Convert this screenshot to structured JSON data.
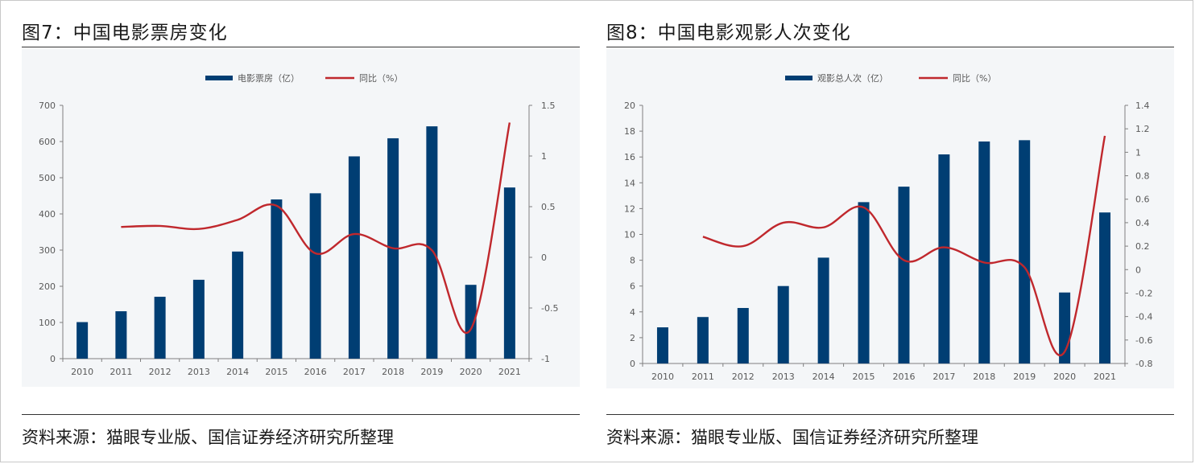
{
  "colors": {
    "bar": "#003e73",
    "line": "#c0282d",
    "axis": "#7f7f7f",
    "text": "#595959"
  },
  "panels": [
    {
      "title": "图7：中国电影票房变化",
      "source": "资料来源：猫眼专业版、国信证券经济研究所整理",
      "chart_data": {
        "type": "bar",
        "categories": [
          "2010",
          "2011",
          "2012",
          "2013",
          "2014",
          "2015",
          "2016",
          "2017",
          "2018",
          "2019",
          "2020",
          "2021"
        ],
        "series": [
          {
            "name": "电影票房（亿）",
            "type": "bar",
            "axis": "left",
            "values": [
              101,
              131,
              171,
              218,
              296,
              440,
              457,
              559,
              609,
              642,
              204,
              473
            ]
          },
          {
            "name": "同比（%）",
            "type": "line",
            "axis": "right",
            "values": [
              null,
              0.3,
              0.31,
              0.28,
              0.37,
              0.51,
              0.04,
              0.23,
              0.09,
              0.07,
              -0.71,
              1.33
            ]
          }
        ],
        "left_axis": {
          "min": 0,
          "max": 700,
          "ticks": [
            0,
            100,
            200,
            300,
            400,
            500,
            600,
            700
          ],
          "tick_labels": [
            "0",
            "100",
            "200",
            "300",
            "400",
            "500",
            "600",
            "700"
          ]
        },
        "right_axis": {
          "min": -1,
          "max": 1.5,
          "ticks": [
            -1,
            -0.5,
            0,
            0.5,
            1,
            1.5
          ],
          "tick_labels": [
            "-1",
            "-0.5",
            "0",
            "0.5",
            "1",
            "1.5"
          ]
        },
        "legend": "top-center",
        "grid": false
      }
    },
    {
      "title": "图8：中国电影观影人次变化",
      "source": "资料来源：猫眼专业版、国信证券经济研究所整理",
      "chart_data": {
        "type": "bar",
        "categories": [
          "2010",
          "2011",
          "2012",
          "2013",
          "2014",
          "2015",
          "2016",
          "2017",
          "2018",
          "2019",
          "2020",
          "2021"
        ],
        "series": [
          {
            "name": "观影总人次（亿）",
            "type": "bar",
            "axis": "left",
            "values": [
              2.8,
              3.6,
              4.3,
              6.0,
              8.2,
              12.5,
              13.7,
              16.2,
              17.2,
              17.3,
              5.5,
              11.7
            ]
          },
          {
            "name": "同比（%）",
            "type": "line",
            "axis": "right",
            "values": [
              null,
              0.28,
              0.2,
              0.4,
              0.36,
              0.53,
              0.08,
              0.19,
              0.06,
              0.02,
              -0.7,
              1.14
            ]
          }
        ],
        "left_axis": {
          "min": 0,
          "max": 20,
          "ticks": [
            0,
            2,
            4,
            6,
            8,
            10,
            12,
            14,
            16,
            18,
            20
          ],
          "tick_labels": [
            "0",
            "2",
            "4",
            "6",
            "8",
            "10",
            "12",
            "14",
            "16",
            "18",
            "20"
          ]
        },
        "right_axis": {
          "min": -0.8,
          "max": 1.4,
          "ticks": [
            -0.8,
            -0.6,
            -0.4,
            -0.2,
            0,
            0.2,
            0.4,
            0.6,
            0.8,
            1,
            1.2,
            1.4
          ],
          "tick_labels": [
            "-0.8",
            "-0.6",
            "-0.4",
            "-0.2",
            "0",
            "0.2",
            "0.4",
            "0.6",
            "0.8",
            "1",
            "1.2",
            "1.4"
          ]
        },
        "legend": "top-center",
        "grid": false
      }
    }
  ]
}
